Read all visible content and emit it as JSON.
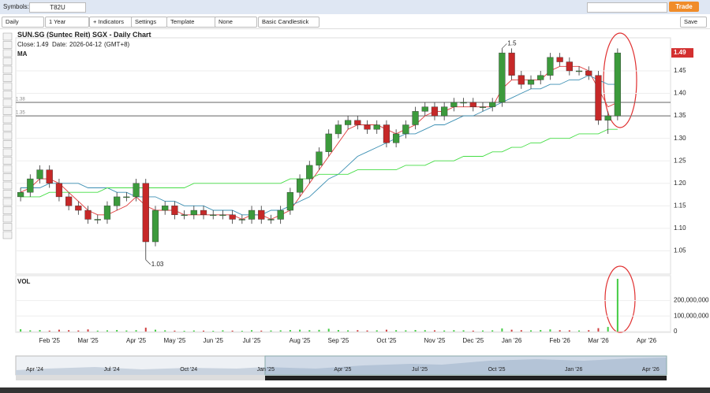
{
  "toolbar": {
    "symbols_label": "Symbols:",
    "symbol": "T82U",
    "trade": "Trade",
    "interval": "Daily",
    "range": "1 Year",
    "indicators": "+ Indicators",
    "settings": "Settings",
    "template": "Template",
    "none": "None",
    "chart_style": "Basic Candlestick",
    "save": "Save"
  },
  "header": {
    "title": "SUN.SG (Suntec Reit) SGX - Daily Chart",
    "close_label": "Close:",
    "date_label": "Date:",
    "date": "2026-04-12",
    "timezone": "(GMT+8)",
    "ma": "MA",
    "vol": "VOL"
  },
  "chart_data": [
    {
      "type": "candlestick",
      "close": 1.49,
      "last_price": 1.49,
      "up_color": "#3c9a3c",
      "down_color": "#c62828",
      "ylim": [
        1.0,
        1.52
      ],
      "yticks": [
        1.05,
        {
          "value": 1.1,
          "label": "1.10"
        },
        1.15,
        {
          "value": 1.2,
          "label": "1.20"
        },
        1.25,
        {
          "value": 1.3,
          "label": "1.30"
        },
        1.35,
        {
          "value": 1.4,
          "label": "1.40"
        },
        1.45
      ],
      "hlines": [
        1.38,
        1.35
      ],
      "annotations": [
        {
          "text": "1.5",
          "index": 50,
          "value": 1.5
        },
        {
          "text": "1.03",
          "index": 13,
          "value": 1.03
        }
      ],
      "open": [
        1.17,
        1.18,
        1.21,
        1.23,
        1.2,
        1.17,
        1.15,
        1.14,
        1.12,
        1.12,
        1.15,
        1.17,
        1.17,
        1.2,
        1.07,
        1.14,
        1.15,
        1.13,
        1.13,
        1.14,
        1.13,
        1.13,
        1.13,
        1.12,
        1.12,
        1.14,
        1.12,
        1.12,
        1.14,
        1.18,
        1.21,
        1.24,
        1.27,
        1.31,
        1.33,
        1.34,
        1.33,
        1.32,
        1.33,
        1.29,
        1.31,
        1.33,
        1.36,
        1.37,
        1.35,
        1.37,
        1.38,
        1.38,
        1.37,
        1.37,
        1.38,
        1.49,
        1.44,
        1.42,
        1.43,
        1.44,
        1.48,
        1.47,
        1.45,
        1.45,
        1.44,
        1.34,
        1.35,
        null,
        null,
        null,
        null,
        null
      ],
      "high": [
        1.19,
        1.22,
        1.24,
        1.24,
        1.21,
        1.18,
        1.16,
        1.15,
        1.13,
        1.16,
        1.18,
        1.18,
        1.21,
        1.21,
        1.15,
        1.16,
        1.16,
        1.14,
        1.15,
        1.15,
        1.14,
        1.14,
        1.14,
        1.13,
        1.15,
        1.15,
        1.13,
        1.15,
        1.19,
        1.22,
        1.25,
        1.28,
        1.32,
        1.34,
        1.35,
        1.35,
        1.34,
        1.34,
        1.34,
        1.32,
        1.34,
        1.37,
        1.38,
        1.38,
        1.38,
        1.39,
        1.39,
        1.39,
        1.38,
        1.39,
        1.5,
        1.5,
        1.45,
        1.44,
        1.45,
        1.49,
        1.49,
        1.48,
        1.46,
        1.46,
        1.45,
        1.36,
        1.5,
        null,
        null,
        null,
        null,
        null
      ],
      "low": [
        1.16,
        1.17,
        1.2,
        1.19,
        1.16,
        1.14,
        1.13,
        1.11,
        1.11,
        1.11,
        1.14,
        1.16,
        1.16,
        1.03,
        1.06,
        1.13,
        1.12,
        1.12,
        1.12,
        1.12,
        1.12,
        1.12,
        1.11,
        1.11,
        1.11,
        1.11,
        1.11,
        1.11,
        1.13,
        1.17,
        1.2,
        1.23,
        1.26,
        1.3,
        1.32,
        1.32,
        1.31,
        1.31,
        1.28,
        1.28,
        1.3,
        1.32,
        1.35,
        1.34,
        1.34,
        1.36,
        1.37,
        1.36,
        1.36,
        1.36,
        1.37,
        1.43,
        1.41,
        1.41,
        1.42,
        1.43,
        1.46,
        1.44,
        1.44,
        1.43,
        1.33,
        1.31,
        1.34,
        null,
        null,
        null,
        null,
        null
      ],
      "close_values": [
        1.18,
        1.21,
        1.23,
        1.2,
        1.17,
        1.15,
        1.14,
        1.12,
        1.12,
        1.15,
        1.17,
        1.17,
        1.2,
        1.07,
        1.14,
        1.15,
        1.13,
        1.13,
        1.14,
        1.13,
        1.13,
        1.13,
        1.12,
        1.12,
        1.14,
        1.12,
        1.12,
        1.14,
        1.18,
        1.21,
        1.24,
        1.27,
        1.31,
        1.33,
        1.34,
        1.33,
        1.32,
        1.33,
        1.29,
        1.31,
        1.33,
        1.36,
        1.37,
        1.35,
        1.37,
        1.38,
        1.38,
        1.37,
        1.37,
        1.38,
        1.49,
        1.44,
        1.42,
        1.43,
        1.44,
        1.48,
        1.47,
        1.45,
        1.45,
        1.44,
        1.34,
        1.35,
        1.49,
        null,
        null,
        null,
        null,
        null
      ],
      "series": [
        {
          "color": "#e03a3a",
          "values": [
            1.18,
            1.19,
            1.21,
            1.21,
            1.2,
            1.18,
            1.16,
            1.14,
            1.13,
            1.13,
            1.14,
            1.15,
            1.17,
            1.15,
            1.14,
            1.14,
            1.14,
            1.13,
            1.13,
            1.13,
            1.13,
            1.13,
            1.13,
            1.12,
            1.13,
            1.13,
            1.12,
            1.13,
            1.14,
            1.17,
            1.2,
            1.23,
            1.26,
            1.29,
            1.32,
            1.33,
            1.33,
            1.33,
            1.32,
            1.31,
            1.32,
            1.33,
            1.35,
            1.36,
            1.36,
            1.37,
            1.37,
            1.37,
            1.37,
            1.37,
            1.41,
            1.43,
            1.43,
            1.43,
            1.43,
            1.45,
            1.46,
            1.46,
            1.46,
            1.45,
            1.41,
            1.37,
            1.38,
            null,
            null,
            null,
            null,
            null
          ]
        },
        {
          "color": "#3b8fb3",
          "values": [
            1.19,
            1.19,
            1.19,
            1.2,
            1.2,
            1.2,
            1.2,
            1.19,
            1.19,
            1.19,
            1.18,
            1.18,
            1.17,
            1.17,
            1.17,
            1.16,
            1.16,
            1.15,
            1.15,
            1.15,
            1.14,
            1.14,
            1.14,
            1.13,
            1.13,
            1.13,
            1.14,
            1.14,
            1.15,
            1.16,
            1.17,
            1.19,
            1.21,
            1.22,
            1.24,
            1.26,
            1.27,
            1.28,
            1.29,
            1.3,
            1.31,
            1.31,
            1.32,
            1.33,
            1.33,
            1.34,
            1.35,
            1.35,
            1.36,
            1.37,
            1.38,
            1.39,
            1.4,
            1.41,
            1.41,
            1.42,
            1.42,
            1.43,
            1.43,
            1.44,
            1.43,
            1.42,
            1.42,
            null,
            null,
            null,
            null,
            null
          ]
        },
        {
          "color": "#44dd44",
          "values": [
            1.17,
            1.17,
            1.17,
            1.18,
            1.18,
            1.18,
            1.18,
            1.18,
            1.18,
            1.19,
            1.19,
            1.19,
            1.19,
            1.19,
            1.19,
            1.19,
            1.19,
            1.19,
            1.2,
            1.2,
            1.2,
            1.2,
            1.2,
            1.2,
            1.2,
            1.2,
            1.2,
            1.2,
            1.21,
            1.21,
            1.21,
            1.22,
            1.22,
            1.22,
            1.22,
            1.23,
            1.23,
            1.23,
            1.23,
            1.23,
            1.24,
            1.24,
            1.24,
            1.25,
            1.25,
            1.25,
            1.26,
            1.26,
            1.26,
            1.27,
            1.27,
            1.28,
            1.28,
            1.29,
            1.29,
            1.3,
            1.3,
            1.3,
            1.31,
            1.31,
            1.31,
            1.32,
            1.32,
            null,
            null,
            null,
            null,
            null
          ]
        }
      ]
    },
    {
      "type": "bar",
      "ylim": [
        0,
        350000000
      ],
      "yticks": [
        0,
        {
          "value": 100000000,
          "label": "100,000,000"
        },
        {
          "value": 200000000,
          "label": "200,000,000"
        }
      ],
      "categories": [
        null,
        null,
        null,
        "Feb '25",
        null,
        null,
        null,
        "Mar '25",
        null,
        null,
        null,
        null,
        "Apr '25",
        null,
        null,
        null,
        "May '25",
        null,
        null,
        null,
        "Jun '25",
        null,
        null,
        null,
        "Jul '25",
        null,
        null,
        null,
        null,
        "Aug '25",
        null,
        null,
        null,
        "Sep '25",
        null,
        null,
        null,
        null,
        "Oct '25",
        null,
        null,
        null,
        null,
        "Nov '25",
        null,
        null,
        null,
        "Dec '25",
        null,
        null,
        null,
        "Jan '26",
        null,
        null,
        null,
        null,
        "Feb '26",
        null,
        null,
        null,
        "Mar '26",
        null,
        null,
        null,
        null,
        "Apr '26",
        null,
        null
      ],
      "values": [
        15000000,
        8000000,
        10000000,
        6000000,
        12000000,
        9000000,
        7000000,
        14000000,
        6000000,
        8000000,
        10000000,
        7000000,
        9000000,
        25000000,
        12000000,
        8000000,
        6000000,
        5000000,
        7000000,
        6000000,
        5000000,
        8000000,
        6000000,
        5000000,
        9000000,
        6000000,
        7000000,
        8000000,
        10000000,
        12000000,
        9000000,
        11000000,
        18000000,
        10000000,
        8000000,
        9000000,
        7000000,
        8000000,
        12000000,
        9000000,
        8000000,
        10000000,
        9000000,
        8000000,
        7000000,
        9000000,
        8000000,
        6000000,
        7000000,
        8000000,
        20000000,
        12000000,
        9000000,
        8000000,
        10000000,
        14000000,
        9000000,
        8000000,
        7000000,
        9000000,
        22000000,
        30000000,
        340000000,
        null,
        null,
        null,
        null,
        null
      ]
    }
  ],
  "navigator": {
    "labels": [
      "Apr '24",
      "Jul '24",
      "Oct '24",
      "Jan '25",
      "Apr '25",
      "Jul '25",
      "Oct '25",
      "Jan '26",
      "Apr '26"
    ]
  }
}
